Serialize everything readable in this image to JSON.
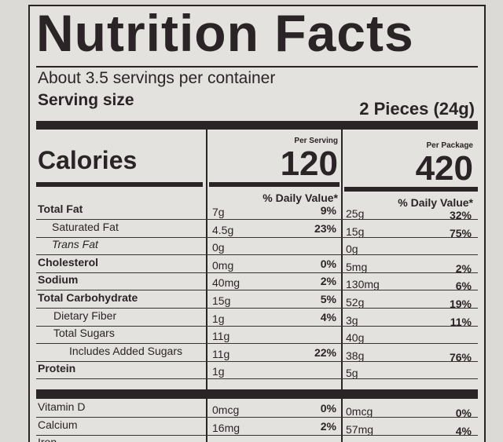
{
  "header": {
    "title": "Nutrition Facts",
    "servings": "About 3.5 servings per container",
    "serving_size_label": "Serving size",
    "serving_size": "2 Pieces (24g)"
  },
  "calories": {
    "label": "Calories",
    "per_serving_label": "Per Serving",
    "per_serving": "120",
    "per_package_label": "Per Package",
    "per_package": "420"
  },
  "daily_value_headers": [
    "% Daily Value*",
    "% Daily Value*"
  ],
  "nutrients": [
    {
      "name": "Total Fat",
      "serving": [
        "7g",
        "9%"
      ],
      "package": [
        "25g",
        "32%"
      ]
    },
    {
      "name": "Saturated Fat",
      "serving": [
        "4.5g",
        "23%"
      ],
      "package": [
        "15g",
        "75%"
      ]
    },
    {
      "name": "Trans Fat",
      "serving": [
        "0g"
      ],
      "package": [
        "0g"
      ]
    },
    {
      "name": "Cholesterol",
      "serving": [
        "0mg",
        "0%"
      ],
      "package": [
        "5mg",
        "2%"
      ]
    },
    {
      "name": "Sodium",
      "serving": [
        "40mg",
        "2%"
      ],
      "package": [
        "130mg",
        "6%"
      ]
    },
    {
      "name": "Total Carbohydrate",
      "serving": [
        "15g",
        "5%"
      ],
      "package": [
        "52g",
        "19%"
      ]
    },
    {
      "name": "Dietary Fiber",
      "serving": [
        "1g",
        "4%"
      ],
      "package": [
        "3g",
        "11%"
      ]
    },
    {
      "name": "Total Sugars",
      "serving": [
        "11g"
      ],
      "package": [
        "40g"
      ]
    },
    {
      "name": "Includes Added Sugars",
      "serving": [
        "11g",
        "22%"
      ],
      "package": [
        "38g",
        "76%"
      ]
    },
    {
      "name": "Protein",
      "serving": [
        "1g"
      ],
      "package": [
        "5g"
      ]
    }
  ],
  "vitamins": [
    {
      "name": "Vitamin D",
      "serving": [
        "0mcg",
        "0%"
      ],
      "package": [
        "0mcg",
        "0%"
      ]
    },
    {
      "name": "Calcium",
      "serving": [
        "16mg",
        "2%"
      ],
      "package": [
        "57mg",
        "4%"
      ]
    },
    {
      "name": "Iron",
      "serving": [],
      "package": []
    }
  ]
}
